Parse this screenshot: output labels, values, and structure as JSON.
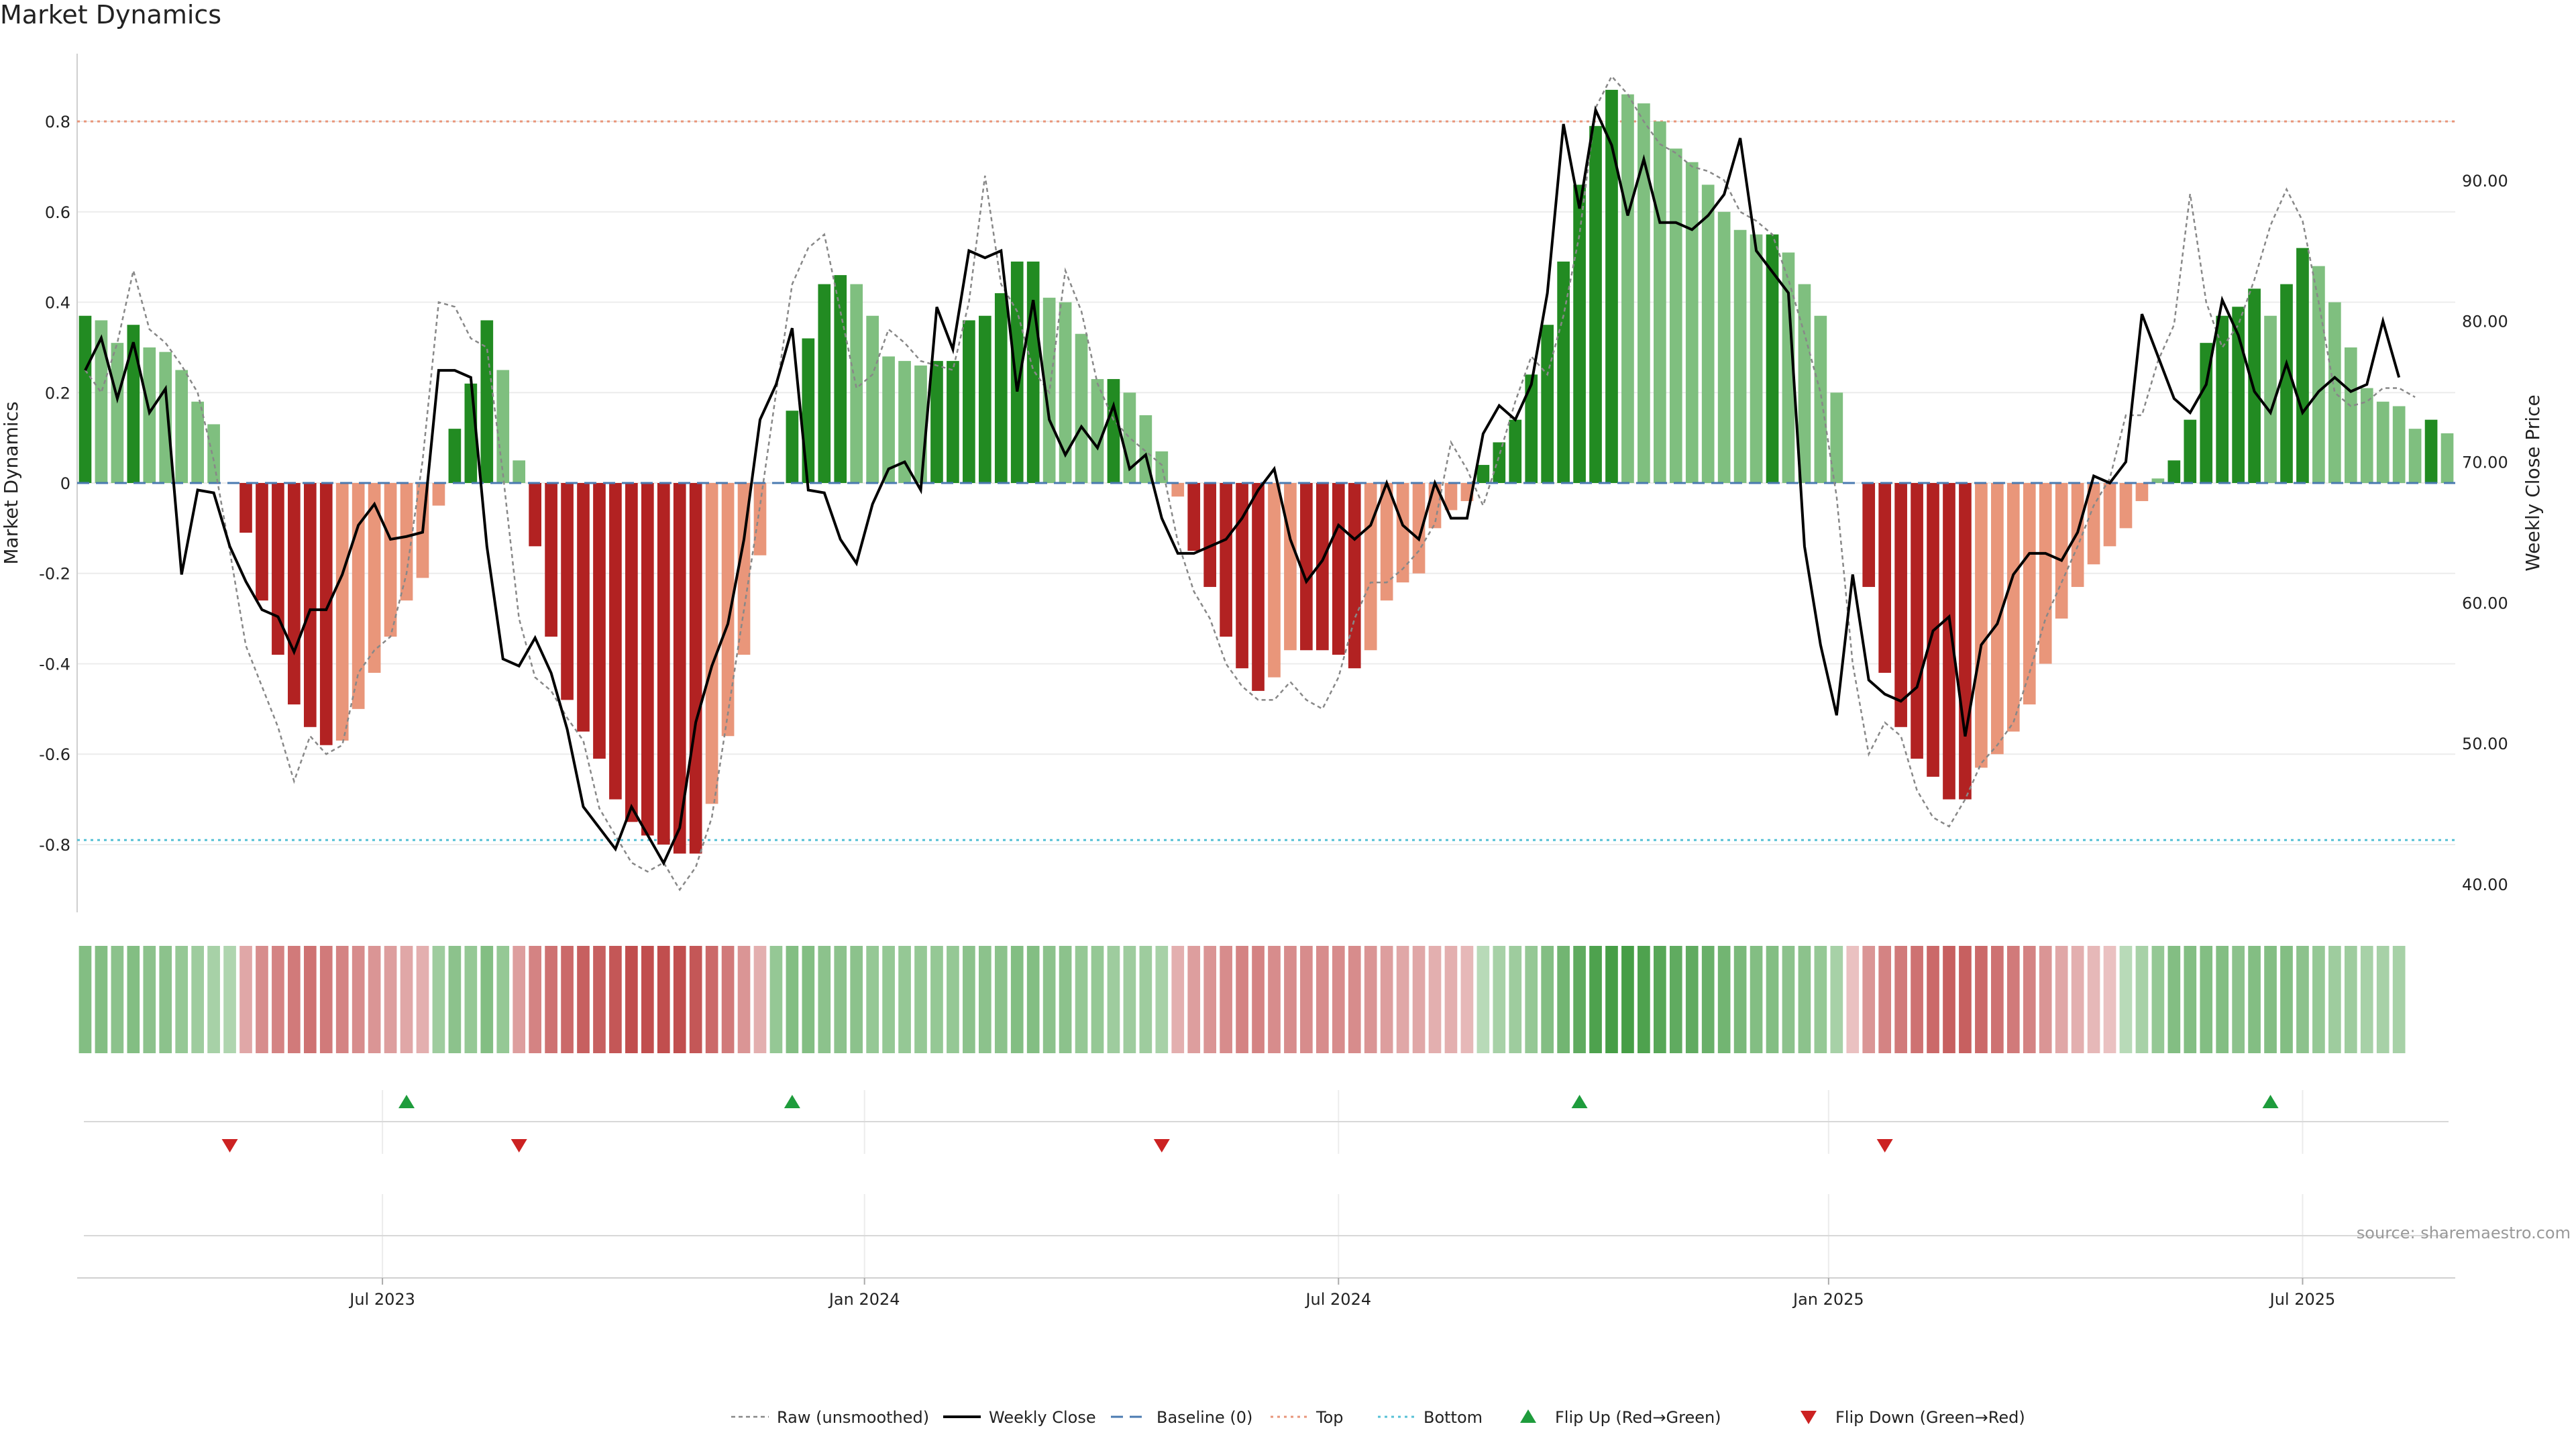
{
  "chart_data": {
    "type": "bar",
    "title": "Market Dynamics",
    "ylabel": "Market Dynamics",
    "y2label": "Weekly Close Price",
    "ylim": [
      -0.95,
      0.95
    ],
    "y2lim": [
      38,
      99
    ],
    "yticks": [
      "0.8",
      "0.6",
      "0.4",
      "0.2",
      "0",
      "-0.2",
      "-0.4",
      "-0.6",
      "-0.8"
    ],
    "ytick_values": [
      0.8,
      0.6,
      0.4,
      0.2,
      0,
      -0.2,
      -0.4,
      -0.6,
      -0.8
    ],
    "y2ticks": [
      "40.00",
      "50.00",
      "60.00",
      "70.00",
      "80.00",
      "90.00"
    ],
    "y2tick_values": [
      40,
      50,
      60,
      70,
      80,
      90
    ],
    "xticks": [
      "Jul 2023",
      "Jan 2024",
      "Jul 2024",
      "Jan 2025",
      "Jul 2025"
    ],
    "xtick_weeks": [
      18.5,
      48.5,
      78,
      108.5,
      138
    ],
    "top_level": 0.8,
    "bottom_level": -0.79,
    "momentum": [
      0.37,
      0.36,
      0.31,
      0.35,
      0.3,
      0.29,
      0.25,
      0.18,
      0.13,
      0.0,
      -0.11,
      -0.26,
      -0.38,
      -0.49,
      -0.54,
      -0.58,
      -0.57,
      -0.5,
      -0.42,
      -0.34,
      -0.26,
      -0.21,
      -0.05,
      0.12,
      0.22,
      0.36,
      0.25,
      0.05,
      -0.14,
      -0.34,
      -0.48,
      -0.55,
      -0.61,
      -0.7,
      -0.75,
      -0.78,
      -0.8,
      -0.82,
      -0.82,
      -0.71,
      -0.56,
      -0.38,
      -0.16,
      0.0,
      0.16,
      0.32,
      0.44,
      0.46,
      0.44,
      0.37,
      0.28,
      0.27,
      0.26,
      0.27,
      0.27,
      0.36,
      0.37,
      0.42,
      0.49,
      0.49,
      0.41,
      0.4,
      0.33,
      0.23,
      0.23,
      0.2,
      0.15,
      0.07,
      -0.03,
      -0.15,
      -0.23,
      -0.34,
      -0.41,
      -0.46,
      -0.43,
      -0.37,
      -0.37,
      -0.37,
      -0.38,
      -0.41,
      -0.37,
      -0.26,
      -0.22,
      -0.2,
      -0.1,
      -0.06,
      -0.04,
      0.04,
      0.09,
      0.14,
      0.24,
      0.35,
      0.49,
      0.66,
      0.79,
      0.87,
      0.86,
      0.84,
      0.8,
      0.74,
      0.71,
      0.66,
      0.6,
      0.56,
      0.55,
      0.55,
      0.51,
      0.44,
      0.37,
      0.2,
      0.0,
      -0.23,
      -0.42,
      -0.54,
      -0.61,
      -0.65,
      -0.7,
      -0.7,
      -0.63,
      -0.6,
      -0.55,
      -0.49,
      -0.4,
      -0.3,
      -0.23,
      -0.18,
      -0.14,
      -0.1,
      -0.04,
      0.01,
      0.05,
      0.14,
      0.31,
      0.37,
      0.39,
      0.43,
      0.37,
      0.44,
      0.52,
      0.48,
      0.4,
      0.3,
      0.21,
      0.18,
      0.17,
      0.12,
      0.14,
      0.11
    ],
    "raw": [
      0.25,
      0.2,
      0.31,
      0.47,
      0.34,
      0.31,
      0.26,
      0.2,
      0.05,
      -0.15,
      -0.36,
      -0.45,
      -0.54,
      -0.66,
      -0.56,
      -0.6,
      -0.58,
      -0.42,
      -0.37,
      -0.34,
      -0.2,
      0.05,
      0.4,
      0.39,
      0.32,
      0.3,
      0.02,
      -0.3,
      -0.43,
      -0.46,
      -0.52,
      -0.57,
      -0.72,
      -0.78,
      -0.84,
      -0.86,
      -0.84,
      -0.9,
      -0.85,
      -0.74,
      -0.51,
      -0.28,
      -0.05,
      0.2,
      0.44,
      0.52,
      0.55,
      0.38,
      0.21,
      0.24,
      0.34,
      0.31,
      0.27,
      0.26,
      0.25,
      0.4,
      0.68,
      0.44,
      0.38,
      0.25,
      0.2,
      0.47,
      0.38,
      0.22,
      0.14,
      0.1,
      0.07,
      0.04,
      -0.13,
      -0.24,
      -0.3,
      -0.4,
      -0.45,
      -0.48,
      -0.48,
      -0.44,
      -0.48,
      -0.5,
      -0.43,
      -0.3,
      -0.22,
      -0.22,
      -0.19,
      -0.15,
      -0.09,
      0.09,
      0.03,
      -0.05,
      0.06,
      0.18,
      0.28,
      0.24,
      0.37,
      0.55,
      0.83,
      0.9,
      0.86,
      0.8,
      0.75,
      0.73,
      0.7,
      0.69,
      0.67,
      0.6,
      0.58,
      0.55,
      0.45,
      0.33,
      0.2,
      -0.03,
      -0.4,
      -0.6,
      -0.53,
      -0.56,
      -0.68,
      -0.74,
      -0.76,
      -0.7,
      -0.62,
      -0.58,
      -0.53,
      -0.42,
      -0.3,
      -0.22,
      -0.14,
      -0.05,
      0.01,
      0.15,
      0.15,
      0.27,
      0.35,
      0.64,
      0.4,
      0.3,
      0.35,
      0.45,
      0.57,
      0.65,
      0.58,
      0.4,
      0.2,
      0.17,
      0.18,
      0.21,
      0.21,
      0.19
    ],
    "close": [
      76.5,
      78.8,
      74.5,
      78.5,
      73.5,
      75.2,
      62,
      68,
      67.8,
      64,
      61.5,
      59.5,
      59,
      56.5,
      59.5,
      59.5,
      62,
      65.5,
      67,
      64.5,
      64.7,
      65,
      76.5,
      76.5,
      76,
      64,
      56,
      55.5,
      57.5,
      55,
      51,
      45.5,
      44,
      42.5,
      45.5,
      43.5,
      41.5,
      44,
      51.5,
      55.5,
      58.5,
      64.5,
      73,
      75.5,
      79.5,
      68,
      67.8,
      64.5,
      62.8,
      67,
      69.5,
      70,
      68,
      81,
      78,
      85,
      84.5,
      85,
      75,
      81.5,
      73,
      70.5,
      72.5,
      71,
      74,
      69.5,
      70.5,
      66,
      63.5,
      63.5,
      64,
      64.5,
      66,
      68,
      69.5,
      64.5,
      61.5,
      63,
      65.5,
      64.5,
      65.5,
      68.5,
      65.5,
      64.5,
      68.5,
      66,
      66,
      72,
      74,
      73,
      75.5,
      82,
      94,
      88,
      95,
      92.5,
      87.5,
      91.5,
      87,
      87,
      86.5,
      87.5,
      89,
      93,
      85,
      83.5,
      82,
      64,
      57,
      52,
      62,
      54.5,
      53.5,
      53,
      54,
      58,
      59,
      50.5,
      57,
      58.5,
      62,
      63.5,
      63.5,
      63,
      65,
      69,
      68.5,
      70,
      80.5,
      77.5,
      74.5,
      73.5,
      75.5,
      81.5,
      79,
      75,
      73.5,
      77,
      73.5,
      75,
      76,
      75,
      75.5,
      80,
      76
    ],
    "heat": [
      0.55,
      0.55,
      0.5,
      0.55,
      0.5,
      0.5,
      0.45,
      0.4,
      0.35,
      0.3,
      -0.35,
      -0.5,
      -0.55,
      -0.6,
      -0.65,
      -0.6,
      -0.55,
      -0.5,
      -0.45,
      -0.4,
      -0.35,
      -0.3,
      0.4,
      0.5,
      0.45,
      0.55,
      0.45,
      -0.4,
      -0.55,
      -0.65,
      -0.7,
      -0.75,
      -0.75,
      -0.8,
      -0.85,
      -0.85,
      -0.85,
      -0.85,
      -0.8,
      -0.7,
      -0.6,
      -0.45,
      -0.3,
      0.45,
      0.55,
      0.55,
      0.5,
      0.5,
      0.5,
      0.45,
      0.45,
      0.45,
      0.45,
      0.45,
      0.45,
      0.5,
      0.5,
      0.5,
      0.55,
      0.55,
      0.5,
      0.5,
      0.45,
      0.45,
      0.4,
      0.4,
      0.4,
      0.35,
      -0.3,
      -0.4,
      -0.45,
      -0.5,
      -0.55,
      -0.55,
      -0.5,
      -0.5,
      -0.5,
      -0.5,
      -0.5,
      -0.5,
      -0.45,
      -0.4,
      -0.35,
      -0.35,
      -0.3,
      -0.3,
      -0.25,
      0.25,
      0.35,
      0.4,
      0.45,
      0.55,
      0.65,
      0.75,
      0.85,
      0.9,
      0.9,
      0.85,
      0.8,
      0.75,
      0.75,
      0.7,
      0.65,
      0.6,
      0.55,
      0.55,
      0.5,
      0.5,
      0.45,
      0.35,
      -0.2,
      -0.45,
      -0.55,
      -0.6,
      -0.65,
      -0.7,
      -0.75,
      -0.75,
      -0.7,
      -0.65,
      -0.6,
      -0.55,
      -0.45,
      -0.35,
      -0.3,
      -0.25,
      -0.2,
      0.25,
      0.35,
      0.45,
      0.55,
      0.55,
      0.55,
      0.55,
      0.5,
      0.55,
      0.55,
      0.55,
      0.5,
      0.45,
      0.4,
      0.4,
      0.35,
      0.35,
      0.35
    ],
    "flip_up_weeks": [
      20,
      44,
      93,
      136
    ],
    "flip_down_weeks": [
      9,
      27,
      67,
      112
    ],
    "legend": [
      "Raw (unsmoothed)",
      "Weekly Close",
      "Baseline (0)",
      "Top",
      "Bottom",
      "Flip Up (Red→Green)",
      "Flip Down (Green→Red)"
    ],
    "source": "source: sharemaestro.com",
    "colors": {
      "strong_green": "#228b22",
      "light_green": "#7fbf7f",
      "strong_red": "#b22222",
      "light_red": "#e9967a",
      "close_line": "#000000",
      "raw_line": "#888888",
      "baseline": "#4a7ab0",
      "top": "#e9967a",
      "bottom": "#56c1d6",
      "flip_up": "#1e9c3c",
      "flip_down": "#cc2222",
      "grid": "#ececec"
    }
  }
}
